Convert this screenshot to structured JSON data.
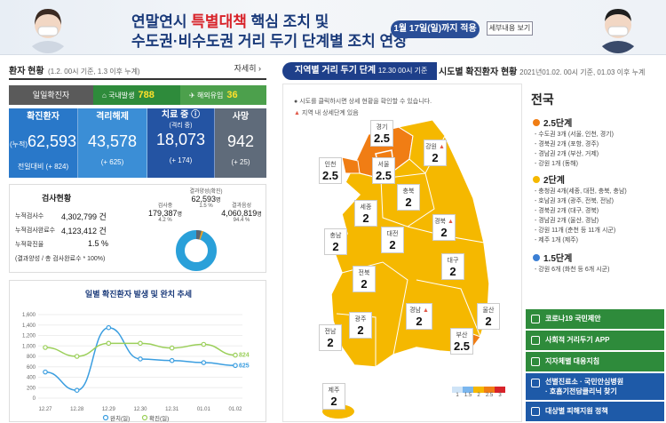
{
  "banner": {
    "line1_a": "연말연시 ",
    "line1_b": "특별대책",
    "line1_c": " 핵심 조치 및",
    "line2": "수도권·비수도권 거리 두기 단계별 조치 연장",
    "badge": "1월 17일(일)까지 적용",
    "detail_btn": "세부내용 보기"
  },
  "status": {
    "title": "환자 현황",
    "subtitle": "(1.2. 00시 기준, 1.3 이후 누계)",
    "detail": "자세히",
    "daily_label": "일일확진자",
    "domestic_label": "국내발생",
    "domestic_value": "788",
    "overseas_label": "해외유입",
    "overseas_value": "36",
    "confirmed_label": "확진환자",
    "confirmed_prefix": "(누적)",
    "confirmed_value": "62,593",
    "confirmed_sub": "전일대비 (+ 824)",
    "released_label": "격리해제",
    "released_value": "43,578",
    "released_sub": "(+ 625)",
    "treating_label": "치료 중",
    "treating_sub_label": "(격리 중)",
    "treating_value": "18,073",
    "treating_sub": "(+ 174)",
    "death_label": "사망",
    "death_value": "942",
    "death_sub": "(+ 25)"
  },
  "tests": {
    "title": "검사현황",
    "rows": [
      {
        "label": "누적검사수",
        "value": "4,302,799 건"
      },
      {
        "label": "누적검사완료수",
        "value": "4,123,412 건"
      },
      {
        "label": "누적확진율",
        "value": "1.5 %"
      }
    ],
    "note": "(결과양성 / 총 검사완료수 * 100%)",
    "testing_label": "검사중",
    "testing_value": "179,387",
    "testing_unit": "명",
    "testing_pct": "4.2 %",
    "positive_label": "결과양성(확진)",
    "positive_value": "62,593",
    "positive_unit": "명",
    "positive_pct": "1.5 %",
    "negative_label": "결과음성",
    "negative_value": "4,060,819",
    "negative_unit": "명",
    "negative_pct": "94.4 %"
  },
  "chart_data": {
    "type": "line",
    "title": "일별 확진환자 발생 및 완치 추세",
    "categories": [
      "12.27",
      "12.28",
      "12.29",
      "12.30",
      "12.31",
      "01.01",
      "01.02"
    ],
    "yticks": [
      "0",
      "200",
      "400",
      "600",
      "800",
      "1,000",
      "1,200",
      "1,400",
      "1,600"
    ],
    "ylim": [
      0,
      1600
    ],
    "series": [
      {
        "name": "완치(일)",
        "color": "#3b9ee0",
        "values": [
          500,
          150,
          1350,
          750,
          720,
          680,
          625
        ]
      },
      {
        "name": "확진(일)",
        "color": "#9bcf5a",
        "values": [
          970,
          800,
          1050,
          1050,
          960,
          1030,
          824
        ]
      }
    ],
    "end_labels": [
      "625",
      "824"
    ],
    "legend_position": "bottom"
  },
  "map": {
    "tab_label": "지역별 거리 두기 단계",
    "tab_time": "12.30 00시 기준",
    "tab2_label": "시도별 확진환자 현황",
    "tab2_time": "2021년01.02. 00시 기준, 01.03 이후 누계",
    "info1": "시도를 클릭하시면 상세 현황을 확인할 수 있습니다.",
    "info2": "지역 내 상세단계 있음",
    "regions": [
      {
        "name": "경기",
        "level": "2.5"
      },
      {
        "name": "강원",
        "level": "2"
      },
      {
        "name": "인천",
        "level": "2.5"
      },
      {
        "name": "서울",
        "level": "2.5"
      },
      {
        "name": "충북",
        "level": "2"
      },
      {
        "name": "세종",
        "level": "2"
      },
      {
        "name": "경북",
        "level": "2"
      },
      {
        "name": "대전",
        "level": "2"
      },
      {
        "name": "충남",
        "level": "2"
      },
      {
        "name": "대구",
        "level": "2"
      },
      {
        "name": "전북",
        "level": "2"
      },
      {
        "name": "경남",
        "level": "2"
      },
      {
        "name": "울산",
        "level": "2"
      },
      {
        "name": "광주",
        "level": "2"
      },
      {
        "name": "부산",
        "level": "2.5"
      },
      {
        "name": "전남",
        "level": "2"
      },
      {
        "name": "제주",
        "level": "2"
      }
    ],
    "scale": [
      "1",
      "1.5",
      "2",
      "2.5",
      "3"
    ]
  },
  "nation": {
    "title": "전국",
    "groups": [
      {
        "level": "2.5단계",
        "color": "#f07d14",
        "items": [
          "- 수도권 3개 (서울, 인천, 경기)",
          "- 경북권 2개 (포항, 경주)",
          "- 경남권 2개 (부산, 거제)",
          "- 강원 1개 (동해)"
        ]
      },
      {
        "level": "2단계",
        "color": "#f5b800",
        "items": [
          "- 충청권 4개(세종, 대전, 충북, 충남)",
          "- 호남권 3개 (광주, 전북, 전남)",
          "- 경북권 2개 (대구, 경북)",
          "- 경남권 2개 (울산, 경남)",
          "- 강원 11개 (춘천 등 11개 시군)",
          "- 제주 1개 (제주)"
        ]
      },
      {
        "level": "1.5단계",
        "color": "#3b7fd4",
        "items": [
          "- 강원 6개 (화천 등 6개 시군)"
        ]
      }
    ]
  },
  "links": [
    {
      "label": "코로나19 국민제안",
      "color": "#2e8b3b"
    },
    {
      "label": "사회적 거리두기 APP",
      "color": "#2e8b3b"
    },
    {
      "label": "지자체별 대응지침",
      "color": "#2e8b3b"
    },
    {
      "label": "선별진료소 · 국민안심병원\n· 호흡기전담클리닉 찾기",
      "color": "#1e5aa8"
    },
    {
      "label": "대상별 피해지원 정책",
      "color": "#1e5aa8"
    }
  ]
}
